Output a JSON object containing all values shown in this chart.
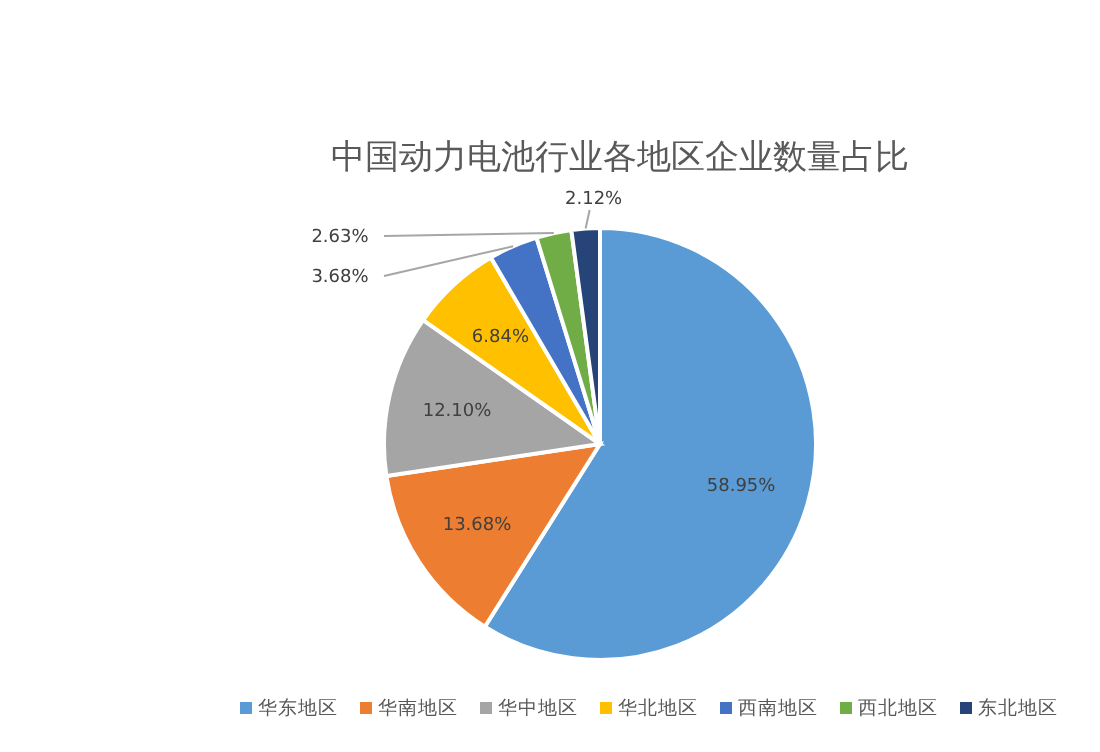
{
  "chart_data": {
    "type": "pie",
    "title": "中国动力电池行业各地区企业数量占比",
    "categories": [
      "华东地区",
      "华南地区",
      "华中地区",
      "华北地区",
      "西南地区",
      "西北地区",
      "东北地区"
    ],
    "values": [
      58.95,
      13.68,
      12.1,
      6.84,
      3.68,
      2.63,
      2.12
    ],
    "value_labels": [
      "58.95%",
      "13.68%",
      "12.10%",
      "6.84%",
      "3.68%",
      "2.63%",
      "2.12%"
    ],
    "colors": [
      "#5b9bd5",
      "#ed7d31",
      "#a5a5a5",
      "#ffc000",
      "#4472c4",
      "#70ad47",
      "#264478"
    ],
    "legend": "bottom"
  }
}
